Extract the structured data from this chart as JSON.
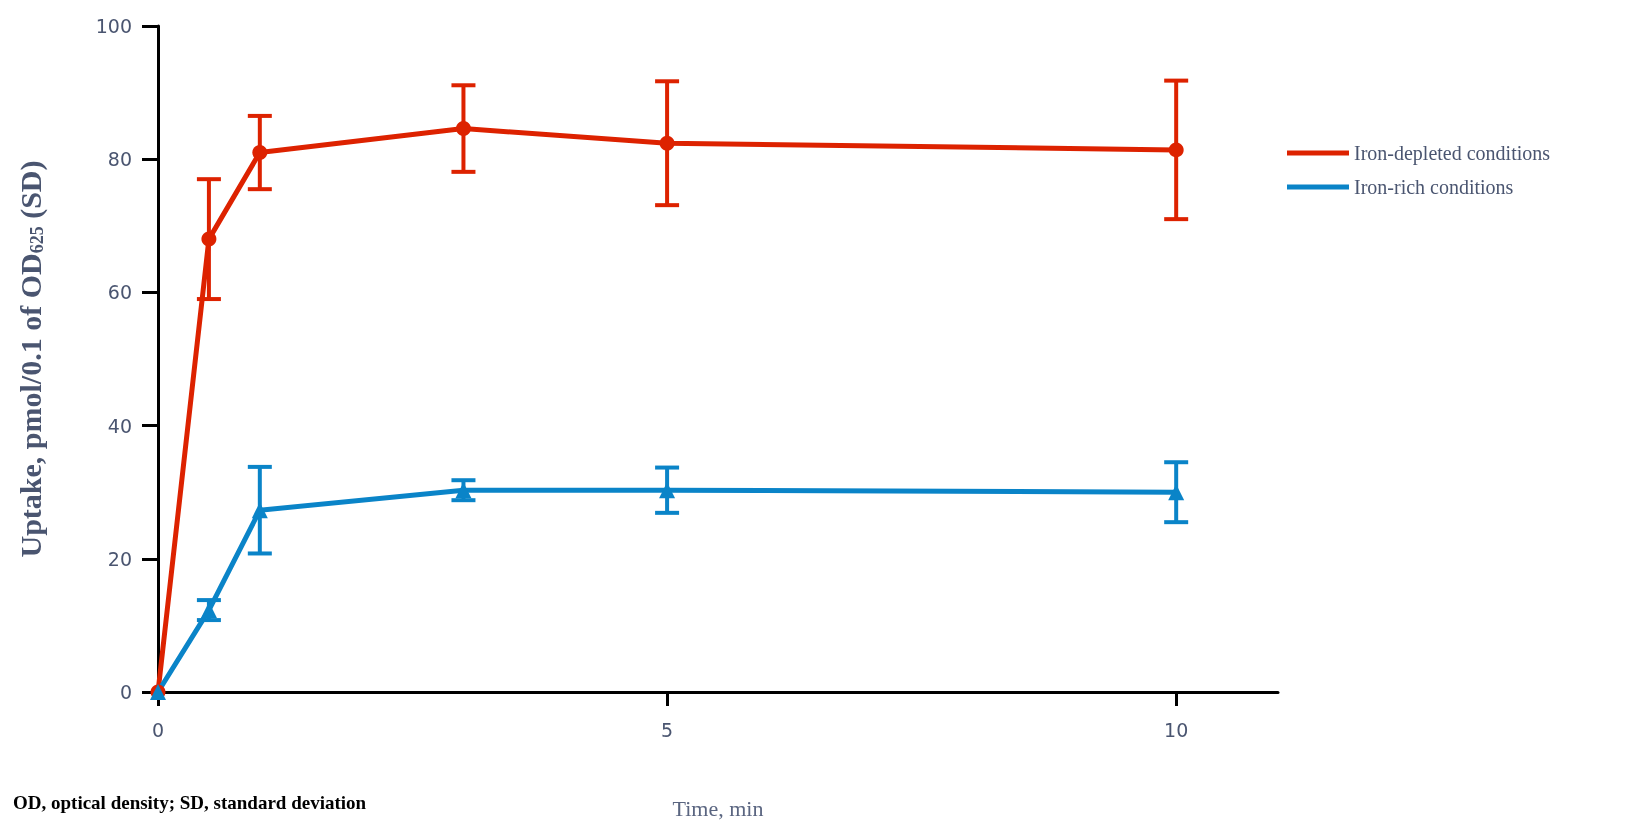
{
  "chart_data": {
    "type": "line",
    "xlabel": "Time, min",
    "ylabel": "Uptake, pmol/0.1 of OD$_{625}$ (SD)",
    "annotations": [
      "OD, optical density; SD, standard deviation"
    ],
    "xlim": [
      0,
      11
    ],
    "xticks": [
      0,
      5,
      10
    ],
    "ylim": [
      0,
      100
    ],
    "yticks": [
      0,
      20,
      40,
      60,
      80,
      100
    ],
    "grid": false,
    "legend": "right",
    "line_style": "solid",
    "series": [
      {
        "name": "Iron-depleted conditions",
        "color": "#dd2200",
        "marker": "circle",
        "x": [
          0,
          0.5,
          1,
          3,
          5,
          10
        ],
        "values": [
          0,
          68,
          81,
          84.6,
          82.4,
          81.4
        ],
        "errors": [
          null,
          9,
          5.5,
          6.5,
          9.3,
          10.4
        ]
      },
      {
        "name": "Iron-rich conditions",
        "color": "#0a84c8",
        "marker": "triangle",
        "x": [
          0,
          0.5,
          1,
          3,
          5,
          10
        ],
        "values": [
          0,
          12.3,
          27.3,
          30.3,
          30.3,
          30
        ],
        "errors": [
          null,
          1.5,
          6.5,
          1.5,
          3.4,
          4.5
        ]
      }
    ]
  }
}
